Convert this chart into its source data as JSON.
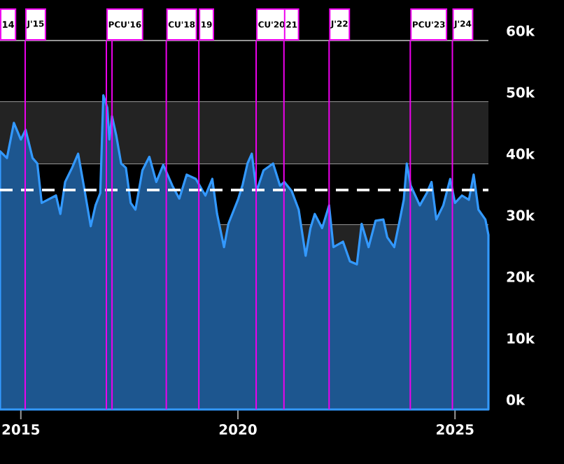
{
  "chart_data": {
    "type": "area",
    "x": [
      2014.52,
      2014.68,
      2014.84,
      2015.0,
      2015.11,
      2015.27,
      2015.38,
      2015.48,
      2015.81,
      2015.91,
      2016.02,
      2016.18,
      2016.32,
      2016.45,
      2016.61,
      2016.72,
      2016.83,
      2016.9,
      2016.99,
      2017.04,
      2017.1,
      2017.2,
      2017.31,
      2017.42,
      2017.53,
      2017.64,
      2017.8,
      2017.96,
      2018.12,
      2018.28,
      2018.49,
      2018.65,
      2018.82,
      2019.03,
      2019.25,
      2019.41,
      2019.52,
      2019.68,
      2019.78,
      2020.0,
      2020.11,
      2020.22,
      2020.32,
      2020.43,
      2020.59,
      2020.81,
      2020.97,
      2021.07,
      2021.24,
      2021.4,
      2021.56,
      2021.67,
      2021.77,
      2021.94,
      2022.1,
      2022.2,
      2022.42,
      2022.58,
      2022.74,
      2022.85,
      2023.01,
      2023.17,
      2023.35,
      2023.44,
      2023.6,
      2023.71,
      2023.82,
      2023.89,
      2023.98,
      2024.19,
      2024.35,
      2024.46,
      2024.57,
      2024.73,
      2024.89,
      2025.0,
      2025.16,
      2025.32,
      2025.43,
      2025.54,
      2025.7,
      2025.77
    ],
    "series": [
      {
        "color": "#3399ff",
        "values": [
          42000,
          40900,
          46600,
          43900,
          45500,
          40900,
          40000,
          33600,
          34800,
          31800,
          37000,
          39300,
          41600,
          36400,
          29800,
          33200,
          35200,
          51100,
          49100,
          43900,
          47700,
          44500,
          40000,
          39300,
          33600,
          32500,
          38900,
          41100,
          37000,
          39800,
          36400,
          34300,
          38200,
          37500,
          34800,
          37500,
          31800,
          26400,
          30200,
          34100,
          36600,
          40000,
          41600,
          35500,
          38900,
          40000,
          36400,
          37000,
          35500,
          32500,
          25000,
          29500,
          31800,
          29500,
          33200,
          26400,
          27300,
          24100,
          23600,
          30200,
          26400,
          30700,
          30900,
          28000,
          26400,
          30200,
          34100,
          40000,
          36400,
          33200,
          35200,
          37000,
          30900,
          33200,
          37500,
          33600,
          34800,
          34100,
          38200,
          32500,
          30900,
          28400
        ]
      }
    ],
    "xlim": [
      2014.52,
      2025.77
    ],
    "xticks": [
      2015,
      2020,
      2025
    ],
    "ylim": [
      0,
      60000
    ],
    "yticks": [
      {
        "value": 0,
        "label": "0k"
      },
      {
        "value": 10000,
        "label": "10k"
      },
      {
        "value": 20000,
        "label": "20k"
      },
      {
        "value": 30000,
        "label": "30k"
      },
      {
        "value": 40000,
        "label": "40k"
      },
      {
        "value": 50000,
        "label": "50k"
      },
      {
        "value": 60000,
        "label": "60k"
      }
    ],
    "grid": "y",
    "bands": [
      {
        "axis": "y",
        "from": 40000,
        "to": 50000,
        "color": "#232323"
      },
      {
        "axis": "y",
        "from": 20000,
        "to": 30000,
        "color": "#232323"
      }
    ],
    "ref_lines": [
      {
        "axis": "y",
        "value": 35700,
        "color": "#ffffff",
        "line_style": "dashed"
      },
      {
        "axis": "x",
        "value": 2015.1,
        "label": "J'15",
        "color": "#ee00ee"
      },
      {
        "axis": "x",
        "value": 2016.97,
        "label": "PCU'16",
        "color": "#ee00ee"
      },
      {
        "axis": "x",
        "value": 2017.1,
        "color": "#ee00ee"
      },
      {
        "axis": "x",
        "value": 2018.35,
        "label": "CU'18",
        "color": "#ee00ee"
      },
      {
        "axis": "x",
        "value": 2019.1,
        "color": "#ee00ee"
      },
      {
        "axis": "x",
        "value": 2020.42,
        "label": "CU'20",
        "color": "#ee00ee"
      },
      {
        "axis": "x",
        "value": 2021.06,
        "color": "#ee00ee"
      },
      {
        "axis": "x",
        "value": 2022.1,
        "label": "J'22",
        "color": "#ee00ee"
      },
      {
        "axis": "x",
        "value": 2023.97,
        "label": "PCU'23",
        "color": "#ee00ee"
      },
      {
        "axis": "x",
        "value": 2024.94,
        "label": "J'24",
        "color": "#ee00ee"
      }
    ],
    "annotations": [
      "14",
      "19",
      "21"
    ]
  }
}
